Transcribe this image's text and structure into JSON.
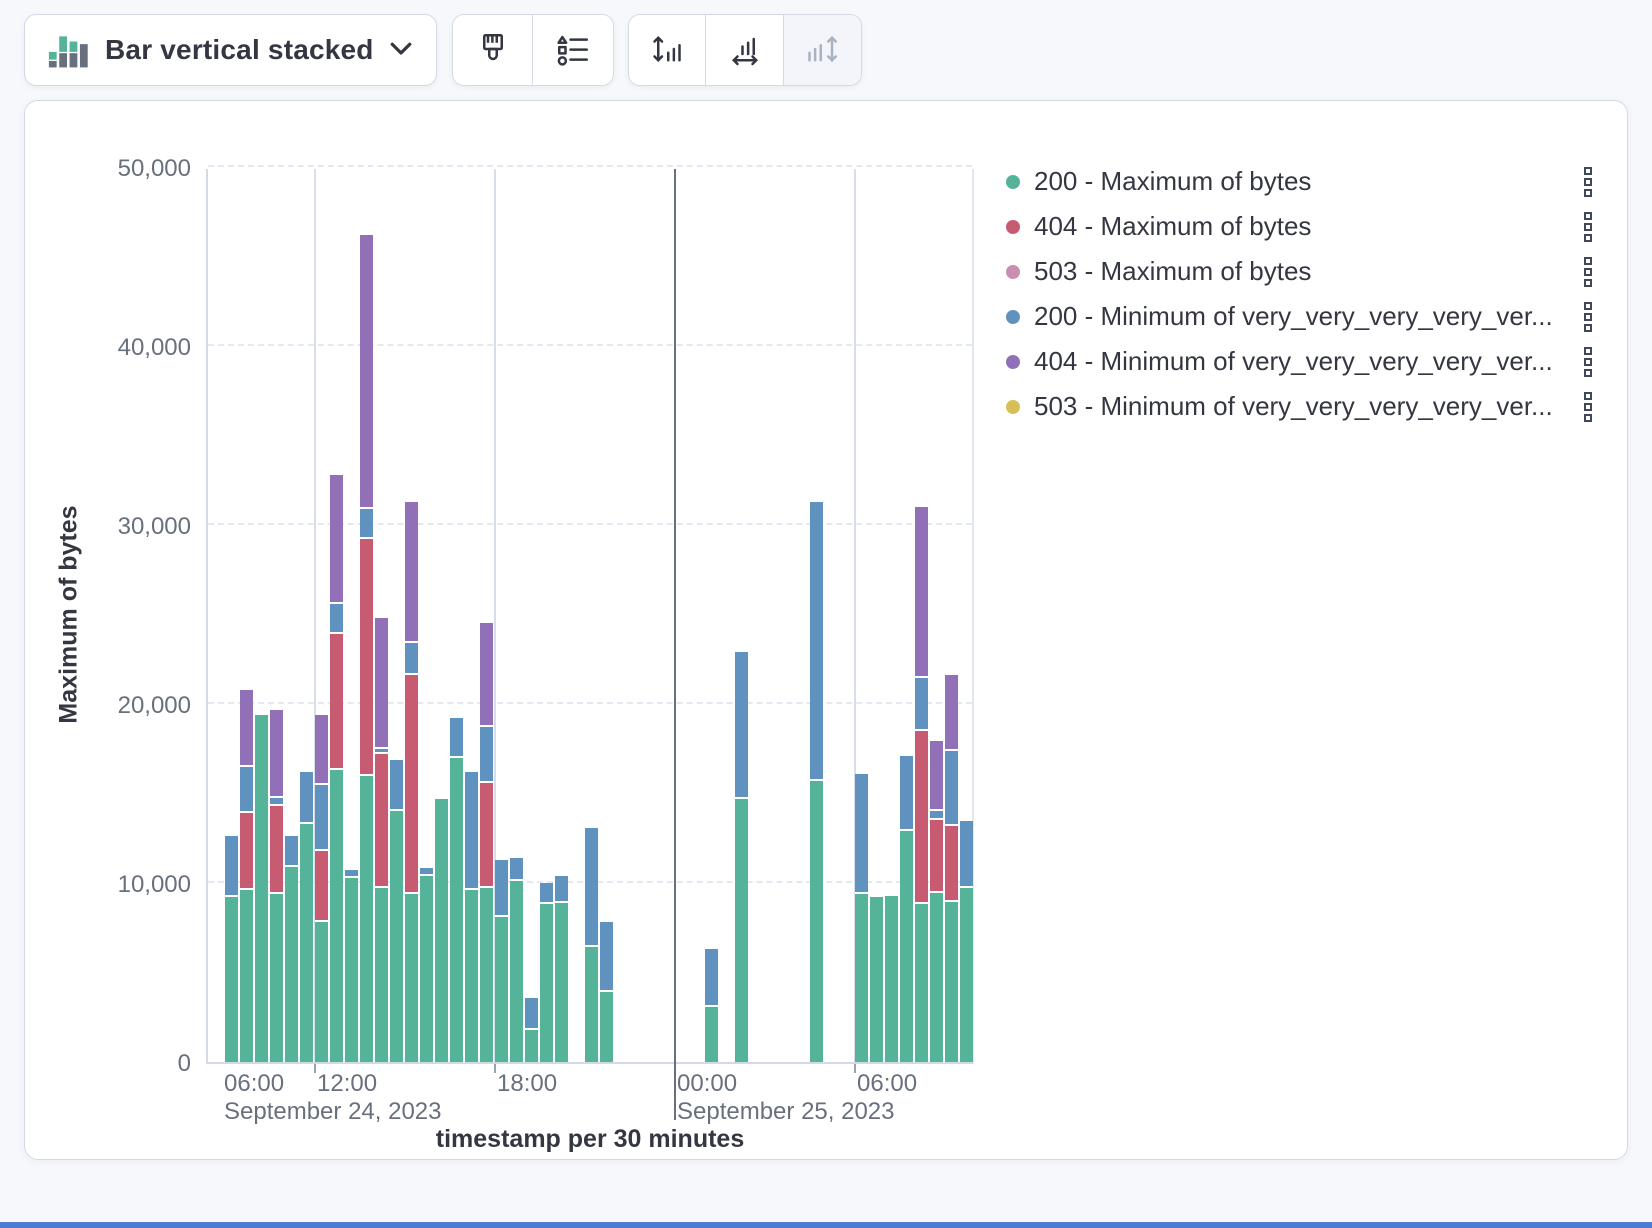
{
  "toolbar": {
    "chart_type_label": "Bar vertical stacked",
    "buttons": [
      {
        "name": "visual-options",
        "icon": "paintbrush-icon"
      },
      {
        "name": "legend-settings",
        "icon": "legend-list-icon"
      },
      {
        "name": "left-axis-settings",
        "icon": "axis-left-icon"
      },
      {
        "name": "bottom-axis-settings",
        "icon": "axis-bottom-icon"
      },
      {
        "name": "right-axis-settings",
        "icon": "axis-right-icon",
        "disabled": true
      }
    ]
  },
  "legend": {
    "items": [
      {
        "label": "200 - Maximum of bytes",
        "color": "#54B399"
      },
      {
        "label": "404 - Maximum of bytes",
        "color": "#C75B72"
      },
      {
        "label": "503 - Maximum of bytes",
        "color": "#CA8EAE"
      },
      {
        "label": "200 - Minimum of very_very_very_very_ver...",
        "color": "#6092C0"
      },
      {
        "label": "404 - Minimum of very_very_very_very_ver...",
        "color": "#9170B8"
      },
      {
        "label": "503 - Minimum of very_very_very_very_ver...",
        "color": "#D6BF57"
      }
    ]
  },
  "chart_data": {
    "type": "bar",
    "stacked": true,
    "title": "",
    "xlabel": "timestamp per 30 minutes",
    "ylabel": "Maximum of bytes",
    "ylim": [
      0,
      50000
    ],
    "y_tick_labels": [
      "0",
      "10,000",
      "20,000",
      "30,000",
      "40,000",
      "50,000"
    ],
    "x_ticks": [
      {
        "label": "06:00",
        "slot": 0,
        "edge": true
      },
      {
        "label": "12:00",
        "slot": 6
      },
      {
        "label": "18:00",
        "slot": 18
      },
      {
        "label": "00:00",
        "slot": 30
      },
      {
        "label": "06:00",
        "slot": 42
      }
    ],
    "date_labels": [
      {
        "label": "September 24, 2023",
        "slot": 0
      },
      {
        "label": "September 25, 2023",
        "slot": 30
      }
    ],
    "gridline_slots": [
      {
        "slot": 6,
        "type": "light"
      },
      {
        "slot": 18,
        "type": "light"
      },
      {
        "slot": 30,
        "type": "dark"
      },
      {
        "slot": 42,
        "type": "light"
      }
    ],
    "tick_slots": [
      6,
      18,
      42
    ],
    "x": [
      "Sep 24 09:00",
      "Sep 24 09:30",
      "Sep 24 10:00",
      "Sep 24 10:30",
      "Sep 24 11:00",
      "Sep 24 11:30",
      "Sep 24 12:00",
      "Sep 24 12:30",
      "Sep 24 13:00",
      "Sep 24 13:30",
      "Sep 24 14:00",
      "Sep 24 14:30",
      "Sep 24 15:00",
      "Sep 24 15:30",
      "Sep 24 16:00",
      "Sep 24 16:30",
      "Sep 24 17:00",
      "Sep 24 17:30",
      "Sep 24 18:00",
      "Sep 24 18:30",
      "Sep 24 19:00",
      "Sep 24 19:30",
      "Sep 24 20:00",
      "Sep 24 20:30",
      "Sep 24 21:00",
      "Sep 24 21:30",
      "Sep 24 22:00",
      "Sep 24 22:30",
      "Sep 24 23:00",
      "Sep 24 23:30",
      "Sep 25 00:00",
      "Sep 25 00:30",
      "Sep 25 01:00",
      "Sep 25 01:30",
      "Sep 25 02:00",
      "Sep 25 02:30",
      "Sep 25 03:00",
      "Sep 25 03:30",
      "Sep 25 04:00",
      "Sep 25 04:30",
      "Sep 25 05:00",
      "Sep 25 05:30",
      "Sep 25 06:00",
      "Sep 25 06:30",
      "Sep 25 07:00",
      "Sep 25 07:30",
      "Sep 25 08:00",
      "Sep 25 08:30",
      "Sep 25 09:00",
      "Sep 25 09:30"
    ],
    "series": [
      {
        "name": "200 - Maximum of bytes",
        "color": "#54B399",
        "values": [
          9200,
          9600,
          19400,
          9400,
          10900,
          13300,
          7800,
          16300,
          10300,
          16000,
          9700,
          14000,
          9400,
          10400,
          14700,
          17000,
          9600,
          9700,
          8100,
          10100,
          1800,
          8800,
          8900,
          0,
          6400,
          3900,
          0,
          0,
          0,
          0,
          0,
          0,
          3100,
          0,
          14700,
          0,
          0,
          0,
          0,
          15700,
          0,
          0,
          9400,
          9200,
          9250,
          12900,
          8850,
          9450,
          8950,
          9700
        ]
      },
      {
        "name": "404 - Maximum of bytes",
        "color": "#C75B72",
        "values": [
          0,
          4300,
          0,
          4900,
          0,
          0,
          4000,
          7600,
          0,
          13200,
          7500,
          0,
          12200,
          0,
          0,
          0,
          0,
          5900,
          0,
          0,
          0,
          0,
          0,
          0,
          0,
          0,
          0,
          0,
          0,
          0,
          0,
          0,
          0,
          0,
          0,
          0,
          0,
          0,
          0,
          0,
          0,
          0,
          0,
          0,
          0,
          0,
          9650,
          4050,
          4250,
          0
        ]
      },
      {
        "name": "503 - Maximum of bytes",
        "color": "#CA8EAE",
        "values": [
          0,
          0,
          0,
          0,
          0,
          0,
          0,
          0,
          0,
          0,
          0,
          0,
          0,
          0,
          0,
          0,
          0,
          0,
          0,
          0,
          0,
          0,
          0,
          0,
          0,
          0,
          0,
          0,
          0,
          0,
          0,
          0,
          0,
          0,
          0,
          0,
          0,
          0,
          0,
          0,
          0,
          0,
          0,
          0,
          0,
          0,
          0,
          0,
          0,
          0
        ]
      },
      {
        "name": "200 - Minimum of very_very_very_very_ver...",
        "color": "#6092C0",
        "values": [
          3400,
          2600,
          0,
          450,
          1700,
          2900,
          3700,
          1700,
          450,
          1700,
          300,
          2850,
          1800,
          450,
          0,
          2200,
          6600,
          3100,
          3200,
          1300,
          1750,
          1200,
          1500,
          0,
          6700,
          3900,
          0,
          0,
          0,
          0,
          0,
          0,
          3200,
          0,
          8200,
          0,
          0,
          0,
          0,
          15600,
          0,
          0,
          6700,
          0,
          0,
          4200,
          2950,
          500,
          4150,
          3750
        ]
      },
      {
        "name": "404 - Minimum of very_very_very_very_ver...",
        "color": "#9170B8",
        "values": [
          0,
          4300,
          0,
          4900,
          0,
          0,
          3900,
          7200,
          0,
          15300,
          7300,
          0,
          7900,
          0,
          0,
          0,
          0,
          5800,
          0,
          0,
          0,
          0,
          0,
          0,
          0,
          0,
          0,
          0,
          0,
          0,
          0,
          0,
          0,
          0,
          0,
          0,
          0,
          0,
          0,
          0,
          0,
          0,
          0,
          0,
          0,
          0,
          9550,
          3950,
          4250,
          0
        ]
      },
      {
        "name": "503 - Minimum of very_very_very_very_ver...",
        "color": "#D6BF57",
        "values": [
          0,
          0,
          0,
          0,
          0,
          0,
          0,
          0,
          0,
          0,
          0,
          0,
          0,
          0,
          0,
          0,
          0,
          0,
          0,
          0,
          0,
          0,
          0,
          0,
          0,
          0,
          0,
          0,
          0,
          0,
          0,
          0,
          0,
          0,
          0,
          0,
          0,
          0,
          0,
          0,
          0,
          0,
          0,
          0,
          0,
          0,
          0,
          0,
          0,
          0
        ]
      }
    ],
    "legend_position": "right",
    "grid": true
  }
}
